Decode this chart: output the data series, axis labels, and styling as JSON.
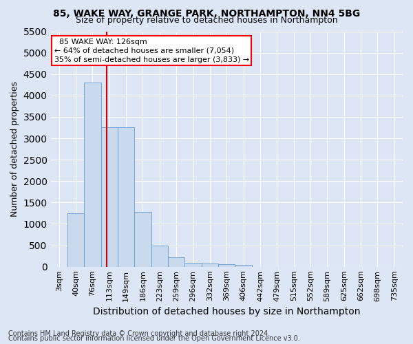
{
  "title": "85, WAKE WAY, GRANGE PARK, NORTHAMPTON, NN4 5BG",
  "subtitle": "Size of property relative to detached houses in Northampton",
  "xlabel": "Distribution of detached houses by size in Northampton",
  "ylabel": "Number of detached properties",
  "bar_labels": [
    "3sqm",
    "40sqm",
    "76sqm",
    "113sqm",
    "149sqm",
    "186sqm",
    "223sqm",
    "259sqm",
    "296sqm",
    "332sqm",
    "369sqm",
    "406sqm",
    "442sqm",
    "479sqm",
    "515sqm",
    "552sqm",
    "589sqm",
    "625sqm",
    "662sqm",
    "698sqm",
    "735sqm"
  ],
  "bar_values": [
    0,
    1250,
    4300,
    3250,
    3250,
    1280,
    490,
    215,
    95,
    75,
    55,
    45,
    0,
    0,
    0,
    0,
    0,
    0,
    0,
    0,
    0
  ],
  "bar_color": "#c9d9ee",
  "bar_edge_color": "#6699cc",
  "ylim": [
    0,
    5500
  ],
  "yticks": [
    0,
    500,
    1000,
    1500,
    2000,
    2500,
    3000,
    3500,
    4000,
    4500,
    5000,
    5500
  ],
  "annotation_title": "85 WAKE WAY: 126sqm",
  "annotation_line1": "← 64% of detached houses are smaller (7,054)",
  "annotation_line2": "35% of semi-detached houses are larger (3,833) →",
  "footer_line1": "Contains HM Land Registry data © Crown copyright and database right 2024.",
  "footer_line2": "Contains public sector information licensed under the Open Government Licence v3.0.",
  "background_color": "#dce6f5",
  "plot_background": "#dce6f5",
  "grid_color": "#ffffff",
  "title_fontsize": 10,
  "subtitle_fontsize": 9,
  "axis_label_fontsize": 9,
  "tick_fontsize": 8,
  "footer_fontsize": 7
}
